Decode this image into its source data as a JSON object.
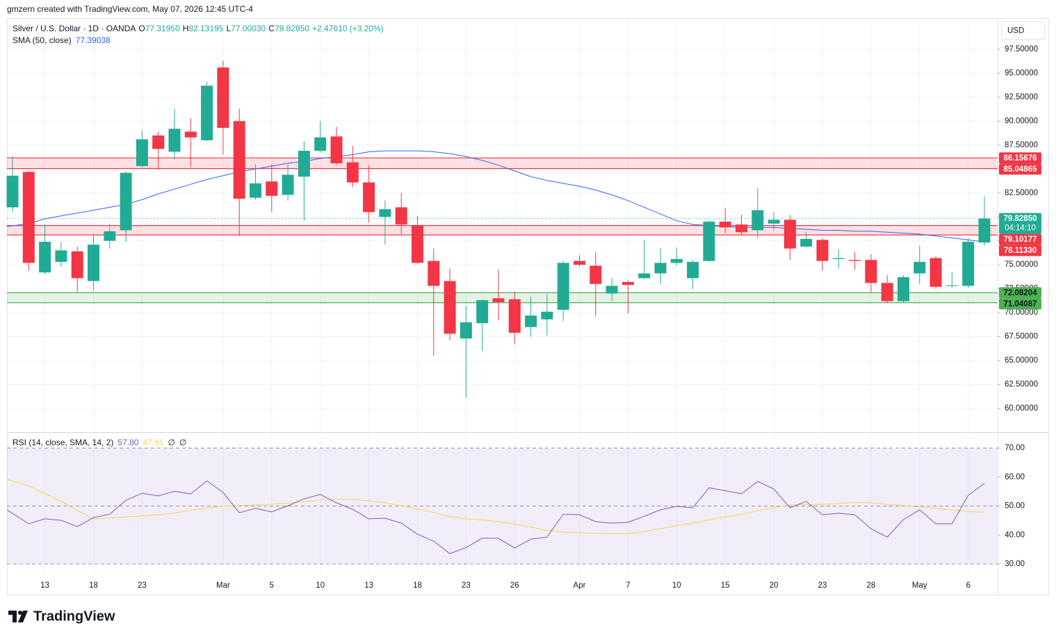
{
  "header": {
    "attribution": "gmzern created with TradingView.com, May 07, 2026 12:45 UTC-4"
  },
  "footer": {
    "logo": "TradingView"
  },
  "chart_data": [
    {
      "type": "candlestick",
      "symbol": "Silver / U.S. Dollar · 1D · OANDA",
      "ohlc_legend": [
        {
          "label": "O",
          "value": "77.31950"
        },
        {
          "label": "H",
          "value": "82.13195"
        },
        {
          "label": "L",
          "value": "77.00030"
        },
        {
          "label": "C",
          "value": "79.82850"
        }
      ],
      "change": "+2.47610 (+3.20%)",
      "currency": "USD",
      "up_color": "#22ab94",
      "down_color": "#f23645",
      "categories": [
        null,
        null,
        "13",
        null,
        null,
        "18",
        null,
        null,
        "23",
        null,
        null,
        null,
        null,
        "Mar",
        null,
        null,
        "5",
        null,
        null,
        "10",
        null,
        null,
        "13",
        null,
        null,
        "18",
        null,
        null,
        "23",
        null,
        null,
        "26",
        null,
        null,
        null,
        "Apr",
        null,
        null,
        "7",
        null,
        null,
        "10",
        null,
        null,
        "15",
        null,
        null,
        "20",
        null,
        null,
        "23",
        null,
        null,
        "28",
        null,
        null,
        "May",
        null,
        null,
        "6",
        null
      ],
      "open": [
        81.0,
        84.7,
        74.2,
        75.3,
        76.4,
        73.3,
        77.5,
        78.6,
        85.3,
        88.5,
        86.8,
        88.9,
        88.0,
        95.6,
        90.0,
        82.0,
        83.7,
        82.3,
        84.2,
        86.9,
        88.4,
        85.7,
        83.6,
        80.0,
        81.0,
        79.1,
        75.4,
        73.3,
        67.3,
        68.9,
        71.5,
        71.4,
        68.5,
        69.3,
        70.3,
        75.4,
        74.9,
        72.0,
        73.2,
        73.6,
        74.1,
        75.2,
        73.6,
        75.4,
        79.5,
        79.2,
        78.6,
        79.3,
        79.7,
        76.9,
        77.6,
        75.6,
        75.5,
        75.5,
        73.1,
        71.2,
        74.1,
        75.7,
        72.78,
        72.8,
        77.3195
      ],
      "high": [
        86.3,
        84.8,
        79.3,
        77.4,
        76.9,
        78.2,
        79.3,
        84.8,
        89.0,
        88.9,
        91.3,
        90.3,
        94.1,
        96.3,
        91.3,
        85.5,
        85.5,
        85.5,
        87.9,
        90.0,
        89.4,
        87.4,
        85.4,
        81.7,
        82.5,
        80.1,
        76.7,
        74.6,
        70.7,
        71.4,
        74.5,
        72.2,
        71.7,
        71.9,
        75.4,
        76.0,
        76.3,
        73.6,
        73.4,
        77.6,
        76.7,
        76.8,
        75.5,
        79.6,
        80.9,
        80.2,
        83.0,
        80.5,
        80.2,
        78.4,
        77.8,
        76.6,
        76.3,
        76.1,
        73.9,
        73.9,
        77.0,
        75.9,
        74.2,
        77.8,
        82.13195
      ],
      "low": [
        80.5,
        74.4,
        74.0,
        74.8,
        72.1,
        72.3,
        76.7,
        77.4,
        85.2,
        84.9,
        86.0,
        85.2,
        87.9,
        86.5,
        78.0,
        81.8,
        80.5,
        81.7,
        79.6,
        86.7,
        85.4,
        83.1,
        79.4,
        77.1,
        78.2,
        75.1,
        65.5,
        67.1,
        61.1,
        66.0,
        69.2,
        66.7,
        67.5,
        67.6,
        69.1,
        74.8,
        69.6,
        71.2,
        69.9,
        73.5,
        73.0,
        74.9,
        72.5,
        75.3,
        78.3,
        78.1,
        77.8,
        78.6,
        75.5,
        76.8,
        74.4,
        74.6,
        74.5,
        72.1,
        71.0,
        71.1,
        73.0,
        72.5,
        72.6,
        72.6,
        77.0003
      ],
      "close": [
        84.3,
        75.2,
        77.4,
        76.5,
        73.6,
        77.1,
        78.5,
        84.6,
        88.1,
        87.1,
        89.2,
        88.3,
        93.7,
        89.3,
        81.9,
        83.5,
        82.2,
        84.4,
        86.9,
        88.3,
        85.6,
        83.6,
        80.5,
        80.8,
        79.2,
        75.2,
        72.8,
        67.8,
        69.0,
        71.3,
        71.1,
        67.9,
        69.7,
        70.1,
        75.2,
        75.0,
        73.0,
        72.8,
        72.9,
        74.1,
        75.2,
        75.6,
        75.3,
        79.5,
        78.9,
        78.4,
        80.7,
        79.7,
        76.7,
        77.7,
        75.4,
        75.7,
        75.4,
        73.1,
        71.2,
        73.7,
        75.3,
        72.7,
        72.85,
        77.4,
        79.8285
      ],
      "series": [
        {
          "name": "SMA (50, close)",
          "color": "#2962ff",
          "value_label": "77.39038",
          "values": [
            79.0,
            79.3,
            79.8,
            80.1,
            80.4,
            80.7,
            81.0,
            81.3,
            81.8,
            82.4,
            82.9,
            83.4,
            83.9,
            84.3,
            84.7,
            85.0,
            85.3,
            85.6,
            85.8,
            86.1,
            86.3,
            86.5,
            86.8,
            86.9,
            86.9,
            86.9,
            86.8,
            86.6,
            86.3,
            85.9,
            85.4,
            84.8,
            84.2,
            83.8,
            83.5,
            83.2,
            82.8,
            82.3,
            81.7,
            81.0,
            80.3,
            79.6,
            79.2,
            79.1,
            79.0,
            78.9,
            78.9,
            78.9,
            78.8,
            78.7,
            78.6,
            78.6,
            78.5,
            78.5,
            78.4,
            78.3,
            78.2,
            78.0,
            77.8,
            77.6,
            77.39038
          ]
        }
      ],
      "last_price": {
        "value": 79.8285,
        "label": "79.82850"
      },
      "countdown": "04:14:10",
      "zones": [
        {
          "top": {
            "value": 86.15676,
            "label": "86.15676"
          },
          "bottom": {
            "value": 85.04865,
            "label": "85.04865"
          },
          "color": "#f23645",
          "text_color": "#ffffff"
        },
        {
          "top": {
            "value": 79.10177,
            "label": "79.10177"
          },
          "bottom": {
            "value": 78.1133,
            "label": "78.11330"
          },
          "color": "#f23645",
          "text_color": "#ffffff"
        },
        {
          "top": {
            "value": 72.08204,
            "label": "72.08204"
          },
          "bottom": {
            "value": 71.04087,
            "label": "71.04087"
          },
          "color": "#4caf50",
          "text_color": "#131722"
        }
      ],
      "ylim": [
        57.53,
        100.76
      ],
      "yticks": [
        {
          "value": 60,
          "label": "60.00000"
        },
        {
          "value": 62.5,
          "label": "62.50000"
        },
        {
          "value": 65,
          "label": "65.00000"
        },
        {
          "value": 67.5,
          "label": "67.50000"
        },
        {
          "value": 70,
          "label": "70.00000"
        },
        {
          "value": 72.5,
          "label": "72.50000"
        },
        {
          "value": 75,
          "label": "75.00000"
        },
        {
          "value": 77.5,
          "label": "77.50000"
        },
        {
          "value": 80,
          "label": "80.00000"
        },
        {
          "value": 82.5,
          "label": "82.50000"
        },
        {
          "value": 85,
          "label": "85.00000"
        },
        {
          "value": 87.5,
          "label": "87.50000"
        },
        {
          "value": 90,
          "label": "90.00000"
        },
        {
          "value": 92.5,
          "label": "92.50000"
        },
        {
          "value": 95,
          "label": "95.00000"
        },
        {
          "value": 97.5,
          "label": "97.50000"
        }
      ],
      "grid": true
    },
    {
      "type": "line",
      "title": "RSI (14, close, SMA, 14, 2)",
      "extra_labels": [
        "∅",
        "∅"
      ],
      "series": [
        {
          "color": "#7e57c2",
          "value_label": "57.80",
          "values": [
            48.7,
            43.9,
            45.6,
            45.1,
            42.9,
            46.0,
            47.2,
            52.0,
            54.4,
            53.5,
            55.1,
            54.2,
            58.7,
            54.7,
            47.7,
            49.2,
            48.0,
            50.1,
            52.5,
            54.0,
            51.1,
            48.9,
            45.6,
            45.8,
            44.1,
            40.3,
            37.9,
            33.6,
            35.7,
            38.9,
            38.9,
            35.5,
            38.6,
            39.3,
            47.2,
            47.0,
            44.6,
            44.1,
            44.4,
            46.5,
            48.7,
            49.9,
            49.4,
            56.3,
            55.3,
            54.2,
            58.5,
            55.9,
            49.4,
            51.6,
            47.0,
            47.5,
            47.0,
            42.2,
            39.3,
            45.3,
            48.7,
            43.9,
            43.9,
            53.7,
            57.8
          ]
        },
        {
          "color": "#f7d54a",
          "value_label": "47.91",
          "values": [
            59.2,
            56.9,
            54.3,
            51.6,
            48.5,
            45.6,
            45.8,
            46.2,
            46.6,
            47.0,
            47.6,
            48.6,
            49.2,
            50.0,
            50.2,
            50.4,
            50.6,
            51.0,
            51.5,
            52.0,
            52.3,
            52.3,
            51.8,
            51.1,
            50.2,
            49.0,
            47.8,
            46.3,
            45.6,
            45.2,
            44.6,
            43.8,
            42.8,
            41.6,
            41.0,
            40.8,
            40.6,
            40.5,
            40.5,
            41.2,
            42.2,
            43.2,
            44.2,
            45.2,
            46.2,
            47.2,
            48.3,
            49.5,
            50.4,
            50.5,
            50.6,
            50.9,
            51.2,
            51.1,
            50.6,
            50.2,
            49.7,
            49.2,
            48.6,
            48.1,
            47.91
          ]
        }
      ],
      "band": {
        "from": 30,
        "to": 70,
        "color": "#7e57c2"
      },
      "middle_line": 50,
      "ylim": [
        25.69,
        75.27
      ],
      "yticks": [
        {
          "value": 30,
          "label": "30.00"
        },
        {
          "value": 40,
          "label": "40.00"
        },
        {
          "value": 50,
          "label": "50.00"
        },
        {
          "value": 60,
          "label": "60.00"
        },
        {
          "value": 70,
          "label": "70.00"
        }
      ]
    }
  ]
}
